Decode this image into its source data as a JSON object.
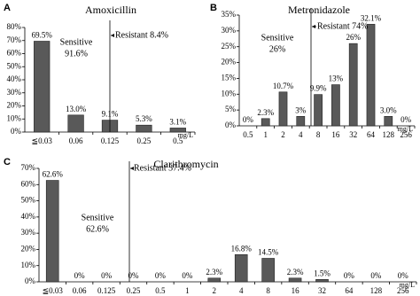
{
  "chart_data": [
    {
      "type": "bar",
      "panel": "A",
      "title": "Amoxicillin",
      "categories": [
        "≦0.03",
        "0.06",
        "0.125",
        "0.25",
        "0.5"
      ],
      "values": [
        69.5,
        13.0,
        9.1,
        5.3,
        3.1
      ],
      "value_labels": [
        "69.5%",
        "13.0%",
        "9.1%",
        "5.3%",
        "3.1%"
      ],
      "color": "#595959",
      "unit": "mg/L",
      "ylim": [
        0,
        80
      ],
      "yticks": [
        {
          "value": 0,
          "label": "0%"
        },
        {
          "value": 10,
          "label": "10%"
        },
        {
          "value": 20,
          "label": "20%"
        },
        {
          "value": 30,
          "label": "30%"
        },
        {
          "value": 40,
          "label": "40%"
        },
        {
          "value": 50,
          "label": "50%"
        },
        {
          "value": 60,
          "label": "60%"
        },
        {
          "value": 70,
          "label": "70%"
        },
        {
          "value": 80,
          "label": "80%"
        }
      ],
      "sensitive": [
        "Sensitive",
        "91.6%"
      ],
      "resistant": "Resistant 8.4%"
    },
    {
      "type": "bar",
      "panel": "B",
      "title": "Metronidazole",
      "categories": [
        "0.5",
        "1",
        "2",
        "4",
        "8",
        "16",
        "32",
        "64",
        "128",
        "256"
      ],
      "values": [
        0,
        2.3,
        10.7,
        3,
        9.9,
        13,
        26,
        32.1,
        3.0,
        0
      ],
      "value_labels": [
        "0%",
        "2.3%",
        "10.7%",
        "3%",
        "9.9%",
        "13%",
        "26%",
        "32.1%",
        "3.0%",
        "0%"
      ],
      "color": "#595959",
      "unit": "mg/L",
      "ylim": [
        0,
        35
      ],
      "yticks": [
        {
          "value": 0,
          "label": "0%"
        },
        {
          "value": 5,
          "label": "5%"
        },
        {
          "value": 10,
          "label": "10%"
        },
        {
          "value": 15,
          "label": "15%"
        },
        {
          "value": 20,
          "label": "20%"
        },
        {
          "value": 25,
          "label": "25%"
        },
        {
          "value": 30,
          "label": "30%"
        },
        {
          "value": 35,
          "label": "35%"
        }
      ],
      "sensitive": [
        "Sensitive",
        "26%"
      ],
      "resistant": "Resistant 74%"
    },
    {
      "type": "bar",
      "panel": "C",
      "title": "Clarithromycin",
      "categories": [
        "≦0.03",
        "0.06",
        "0.125",
        "0.25",
        "0.5",
        "1",
        "2",
        "4",
        "8",
        "16",
        "32",
        "64",
        "128",
        "256"
      ],
      "values": [
        62.6,
        0,
        0,
        0,
        0,
        0,
        2.3,
        16.8,
        14.5,
        2.3,
        1.5,
        0,
        0,
        0
      ],
      "value_labels": [
        "62.6%",
        "0%",
        "0%",
        "0%",
        "0%",
        "0%",
        "2.3%",
        "16.8%",
        "14.5%",
        "2.3%",
        "1.5%",
        "0%",
        "0%",
        "0%"
      ],
      "color": "#595959",
      "unit": "mg/L",
      "ylim": [
        0,
        70
      ],
      "yticks": [
        {
          "value": 0,
          "label": "0%"
        },
        {
          "value": 10,
          "label": "10%"
        },
        {
          "value": 20,
          "label": "20%"
        },
        {
          "value": 30,
          "label": "30%"
        },
        {
          "value": 40,
          "label": "40%"
        },
        {
          "value": 50,
          "label": "50%"
        },
        {
          "value": 60,
          "label": "60%"
        },
        {
          "value": 70,
          "label": "70%"
        }
      ],
      "sensitive": [
        "Sensitive",
        "62.6%"
      ],
      "resistant": "Resistant 37.4%"
    }
  ]
}
